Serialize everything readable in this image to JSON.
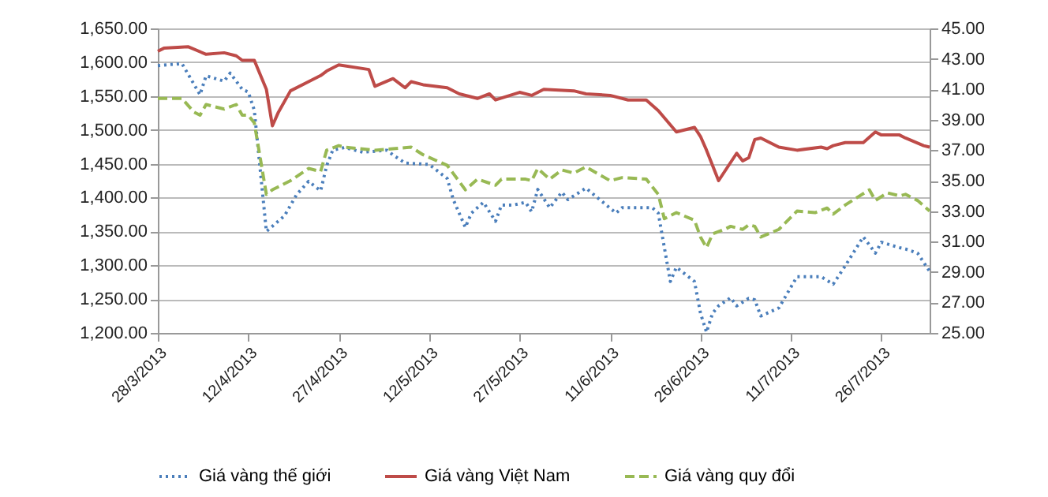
{
  "chart_data": {
    "type": "line",
    "xlim": [
      "2013-03-28",
      "2013-08-03"
    ],
    "xticks": [
      {
        "value": "2013-03-28",
        "label": "28/3/2013"
      },
      {
        "value": "2013-04-12",
        "label": "12/4/2013"
      },
      {
        "value": "2013-04-27",
        "label": "27/4/2013"
      },
      {
        "value": "2013-05-12",
        "label": "12/5/2013"
      },
      {
        "value": "2013-05-27",
        "label": "27/5/2013"
      },
      {
        "value": "2013-06-11",
        "label": "11/6/2013"
      },
      {
        "value": "2013-06-26",
        "label": "26/6/2013"
      },
      {
        "value": "2013-07-11",
        "label": "11/7/2013"
      },
      {
        "value": "2013-07-26",
        "label": "26/7/2013"
      }
    ],
    "ylim": [
      1200,
      1650
    ],
    "yticks": [
      {
        "value": 1200,
        "label": "1,200.00"
      },
      {
        "value": 1250,
        "label": "1,250.00"
      },
      {
        "value": 1300,
        "label": "1,300.00"
      },
      {
        "value": 1350,
        "label": "1,350.00"
      },
      {
        "value": 1400,
        "label": "1,400.00"
      },
      {
        "value": 1450,
        "label": "1,450.00"
      },
      {
        "value": 1500,
        "label": "1,500.00"
      },
      {
        "value": 1550,
        "label": "1,550.00"
      },
      {
        "value": 1600,
        "label": "1,600.00"
      },
      {
        "value": 1650,
        "label": "1,650.00"
      }
    ],
    "y2lim": [
      25,
      45
    ],
    "y2ticks": [
      {
        "value": 25,
        "label": "25.00"
      },
      {
        "value": 27,
        "label": "27.00"
      },
      {
        "value": 29,
        "label": "29.00"
      },
      {
        "value": 31,
        "label": "31.00"
      },
      {
        "value": 33,
        "label": "33.00"
      },
      {
        "value": 35,
        "label": "35.00"
      },
      {
        "value": 37,
        "label": "37.00"
      },
      {
        "value": 39,
        "label": "39.00"
      },
      {
        "value": 41,
        "label": "41.00"
      },
      {
        "value": 43,
        "label": "43.00"
      },
      {
        "value": 45,
        "label": "45.00"
      }
    ],
    "grid": "y",
    "legend": "bottom",
    "marker": "none",
    "series": [
      {
        "name": "Giá vàng thế giới",
        "color": "#4a7ebb",
        "line_style": "dotted",
        "x": [
          "2013-03-28",
          "2013-04-01",
          "2013-04-04",
          "2013-04-05",
          "2013-04-08",
          "2013-04-09",
          "2013-04-11",
          "2013-04-12",
          "2013-04-13",
          "2013-04-15",
          "2013-04-18",
          "2013-04-20",
          "2013-04-22",
          "2013-04-24",
          "2013-04-25",
          "2013-04-26",
          "2013-04-28",
          "2013-05-01",
          "2013-05-05",
          "2013-05-06",
          "2013-05-08",
          "2013-05-12",
          "2013-05-15",
          "2013-05-16",
          "2013-05-18",
          "2013-05-19",
          "2013-05-21",
          "2013-05-23",
          "2013-05-24",
          "2013-05-26",
          "2013-05-28",
          "2013-05-29",
          "2013-05-30",
          "2013-06-01",
          "2013-06-03",
          "2013-06-04",
          "2013-06-07",
          "2013-06-12",
          "2013-06-13",
          "2013-06-18",
          "2013-06-19",
          "2013-06-21",
          "2013-06-22",
          "2013-06-25",
          "2013-06-26",
          "2013-06-27",
          "2013-06-28",
          "2013-06-29",
          "2013-07-01",
          "2013-07-02",
          "2013-07-04",
          "2013-07-05",
          "2013-07-06",
          "2013-07-09",
          "2013-07-12",
          "2013-07-16",
          "2013-07-18",
          "2013-07-20",
          "2013-07-23",
          "2013-07-25",
          "2013-07-26",
          "2013-07-29",
          "2013-07-30",
          "2013-08-01",
          "2013-08-03"
        ],
        "values": [
          1595,
          1598,
          1552,
          1580,
          1572,
          1584,
          1560,
          1556,
          1529,
          1350,
          1373,
          1404,
          1424,
          1410,
          1447,
          1470,
          1474,
          1467,
          1470,
          1463,
          1451,
          1449,
          1428,
          1397,
          1356,
          1377,
          1393,
          1365,
          1389,
          1389,
          1393,
          1379,
          1412,
          1385,
          1408,
          1397,
          1414,
          1377,
          1385,
          1385,
          1377,
          1276,
          1297,
          1276,
          1229,
          1201,
          1229,
          1240,
          1252,
          1240,
          1251,
          1249,
          1225,
          1237,
          1283,
          1283,
          1272,
          1299,
          1342,
          1318,
          1334,
          1326,
          1324,
          1318,
          1291
        ]
      },
      {
        "name": "Giá vàng Việt Nam",
        "color": "#be4b48",
        "line_style": "solid",
        "axis": "y2",
        "x": [
          "2013-03-28",
          "2013-03-29",
          "2013-04-02",
          "2013-04-05",
          "2013-04-08",
          "2013-04-10",
          "2013-04-11",
          "2013-04-13",
          "2013-04-15",
          "2013-04-16",
          "2013-04-17",
          "2013-04-19",
          "2013-04-22",
          "2013-04-24",
          "2013-04-25",
          "2013-04-27",
          "2013-05-02",
          "2013-05-03",
          "2013-05-06",
          "2013-05-08",
          "2013-05-09",
          "2013-05-11",
          "2013-05-15",
          "2013-05-17",
          "2013-05-20",
          "2013-05-22",
          "2013-05-23",
          "2013-05-27",
          "2013-05-29",
          "2013-05-31",
          "2013-06-05",
          "2013-06-07",
          "2013-06-11",
          "2013-06-14",
          "2013-06-17",
          "2013-06-19",
          "2013-06-22",
          "2013-06-25",
          "2013-06-26",
          "2013-06-27",
          "2013-06-29",
          "2013-07-02",
          "2013-07-03",
          "2013-07-04",
          "2013-07-05",
          "2013-07-06",
          "2013-07-09",
          "2013-07-12",
          "2013-07-16",
          "2013-07-17",
          "2013-07-18",
          "2013-07-20",
          "2013-07-23",
          "2013-07-25",
          "2013-07-26",
          "2013-07-29",
          "2013-07-30",
          "2013-08-02",
          "2013-08-03"
        ],
        "values": [
          43.5,
          43.7,
          43.8,
          43.3,
          43.4,
          43.2,
          42.9,
          42.9,
          41.0,
          38.6,
          39.5,
          40.9,
          41.5,
          41.9,
          42.2,
          42.6,
          42.3,
          41.2,
          41.7,
          41.1,
          41.5,
          41.3,
          41.1,
          40.7,
          40.4,
          40.7,
          40.3,
          40.8,
          40.6,
          41.0,
          40.9,
          40.7,
          40.6,
          40.3,
          40.3,
          39.6,
          38.2,
          38.5,
          37.9,
          37.0,
          35.0,
          36.8,
          36.3,
          36.5,
          37.7,
          37.8,
          37.2,
          37.0,
          37.2,
          37.1,
          37.3,
          37.5,
          37.5,
          38.2,
          38.0,
          38.0,
          37.8,
          37.3,
          37.2
        ]
      },
      {
        "name": "Giá vàng quy đổi",
        "color": "#98b954",
        "line_style": "dashed",
        "axis": "y2",
        "x": [
          "2013-03-28",
          "2013-04-01",
          "2013-04-03",
          "2013-04-04",
          "2013-04-05",
          "2013-04-08",
          "2013-04-10",
          "2013-04-11",
          "2013-04-12",
          "2013-04-13",
          "2013-04-15",
          "2013-04-16",
          "2013-04-19",
          "2013-04-22",
          "2013-04-24",
          "2013-04-25",
          "2013-04-27",
          "2013-04-28",
          "2013-05-03",
          "2013-05-06",
          "2013-05-09",
          "2013-05-11",
          "2013-05-15",
          "2013-05-18",
          "2013-05-20",
          "2013-05-23",
          "2013-05-24",
          "2013-05-28",
          "2013-05-29",
          "2013-05-30",
          "2013-06-01",
          "2013-06-03",
          "2013-06-05",
          "2013-06-07",
          "2013-06-11",
          "2013-06-13",
          "2013-06-17",
          "2013-06-19",
          "2013-06-20",
          "2013-06-22",
          "2013-06-25",
          "2013-06-26",
          "2013-06-27",
          "2013-06-28",
          "2013-06-30",
          "2013-07-01",
          "2013-07-03",
          "2013-07-04",
          "2013-07-05",
          "2013-07-06",
          "2013-07-09",
          "2013-07-12",
          "2013-07-15",
          "2013-07-17",
          "2013-07-18",
          "2013-07-20",
          "2013-07-24",
          "2013-07-25",
          "2013-07-27",
          "2013-07-29",
          "2013-07-30",
          "2013-08-01",
          "2013-08-03"
        ],
        "values": [
          40.4,
          40.4,
          39.5,
          39.3,
          40.0,
          39.7,
          40.0,
          39.3,
          39.3,
          38.8,
          34.1,
          34.4,
          35.0,
          35.8,
          35.6,
          37.0,
          37.3,
          37.2,
          37.0,
          37.1,
          37.2,
          36.7,
          36.0,
          34.4,
          35.1,
          34.7,
          35.1,
          35.1,
          35.0,
          35.8,
          35.1,
          35.7,
          35.5,
          35.9,
          35.0,
          35.2,
          35.1,
          34.1,
          32.5,
          32.9,
          32.4,
          31.3,
          30.6,
          31.5,
          31.8,
          32.0,
          31.8,
          32.1,
          32.0,
          31.3,
          31.8,
          33.0,
          32.9,
          33.2,
          32.8,
          33.4,
          34.4,
          33.7,
          34.2,
          34.0,
          34.1,
          33.7,
          33.0
        ]
      }
    ]
  }
}
